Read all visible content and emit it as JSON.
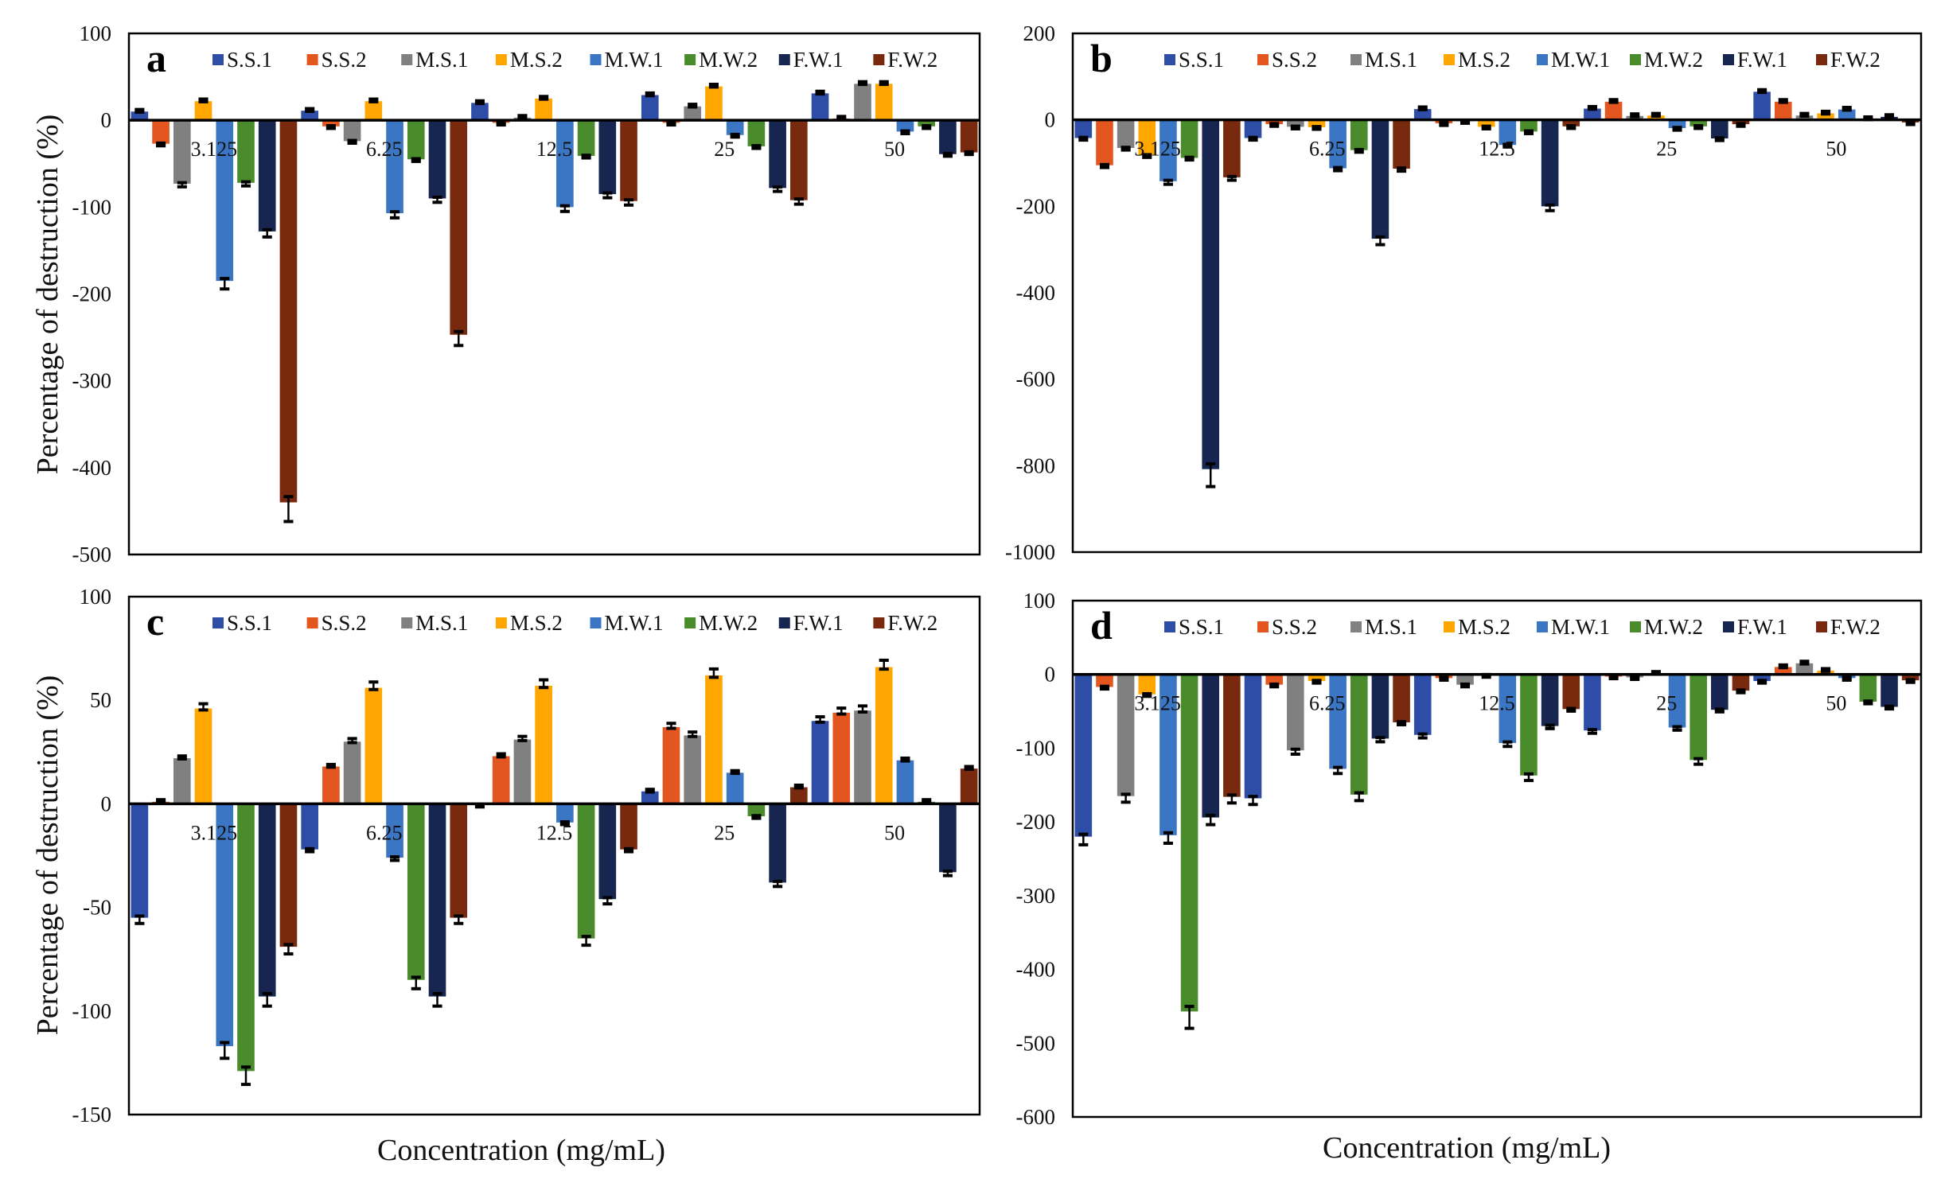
{
  "figure": {
    "ylabel": "Percentage of destruction (%)",
    "xlabel": "Concentration (mg/mL)"
  },
  "chart_data": [
    {
      "type": "bar",
      "panel": "a",
      "title": "a",
      "xlabel": "",
      "ylabel": "Percentage of destruction (%)",
      "categories": [
        "3.125",
        "6.25",
        "12.5",
        "25",
        "50"
      ],
      "ylim": [
        -500,
        100
      ],
      "yticks": [
        100,
        0,
        -100,
        -200,
        -300,
        -400,
        -500
      ],
      "legend_position": "top",
      "grid": false,
      "error_bars": true,
      "series": [
        {
          "name": "S.S.1",
          "color": "#2E4DA7",
          "values": [
            10,
            11,
            20,
            29,
            31
          ]
        },
        {
          "name": "S.S.2",
          "color": "#E4561F",
          "values": [
            -27,
            -7,
            -3,
            -3,
            2
          ]
        },
        {
          "name": "M.S.1",
          "color": "#808080",
          "values": [
            -73,
            -24,
            3,
            16,
            42
          ]
        },
        {
          "name": "M.S.2",
          "color": "#FFA600",
          "values": [
            22,
            22,
            25,
            39,
            42
          ]
        },
        {
          "name": "M.W.1",
          "color": "#3B76C5",
          "values": [
            -185,
            -107,
            -100,
            -17,
            -13
          ]
        },
        {
          "name": "M.W.2",
          "color": "#4A8B2C",
          "values": [
            -72,
            -45,
            -41,
            -30,
            -7
          ]
        },
        {
          "name": "F.W.1",
          "color": "#172650",
          "values": [
            -128,
            -90,
            -85,
            -78,
            -39
          ]
        },
        {
          "name": "F.W.2",
          "color": "#79290D",
          "values": [
            -440,
            -247,
            -93,
            -92,
            -37
          ]
        }
      ]
    },
    {
      "type": "bar",
      "panel": "b",
      "title": "b",
      "xlabel": "",
      "ylabel": "",
      "categories": [
        "3.125",
        "6.25",
        "12.5",
        "25",
        "50"
      ],
      "ylim": [
        -1000,
        200
      ],
      "yticks": [
        200,
        0,
        -200,
        -400,
        -600,
        -800,
        -1000
      ],
      "legend_position": "top",
      "grid": false,
      "error_bars": true,
      "series": [
        {
          "name": "S.S.1",
          "color": "#2E4DA7",
          "values": [
            -42,
            -42,
            25,
            26,
            65
          ]
        },
        {
          "name": "S.S.2",
          "color": "#E4561F",
          "values": [
            -105,
            -10,
            -8,
            42,
            42
          ]
        },
        {
          "name": "M.S.1",
          "color": "#808080",
          "values": [
            -65,
            -16,
            -3,
            9,
            10
          ]
        },
        {
          "name": "M.S.2",
          "color": "#FFA600",
          "values": [
            -82,
            -17,
            -16,
            10,
            15
          ]
        },
        {
          "name": "M.W.1",
          "color": "#3B76C5",
          "values": [
            -142,
            -112,
            -58,
            -19,
            24
          ]
        },
        {
          "name": "M.W.2",
          "color": "#4A8B2C",
          "values": [
            -88,
            -70,
            -27,
            -15,
            2
          ]
        },
        {
          "name": "F.W.1",
          "color": "#172650",
          "values": [
            -808,
            -275,
            -200,
            -43,
            7
          ]
        },
        {
          "name": "F.W.2",
          "color": "#79290D",
          "values": [
            -133,
            -113,
            -15,
            -10,
            -6
          ]
        }
      ]
    },
    {
      "type": "bar",
      "panel": "c",
      "title": "c",
      "xlabel": "Concentration (mg/mL)",
      "ylabel": "Percentage of destruction (%)",
      "categories": [
        "3.125",
        "6.25",
        "12.5",
        "25",
        "50"
      ],
      "ylim": [
        -150,
        100
      ],
      "yticks": [
        100,
        50,
        0,
        -50,
        -100,
        -150
      ],
      "legend_position": "top",
      "grid": false,
      "error_bars": true,
      "series": [
        {
          "name": "S.S.1",
          "color": "#2E4DA7",
          "values": [
            -55,
            -22,
            -0.5,
            6,
            40
          ]
        },
        {
          "name": "S.S.2",
          "color": "#E4561F",
          "values": [
            1,
            18,
            23,
            37,
            44
          ]
        },
        {
          "name": "M.S.1",
          "color": "#808080",
          "values": [
            22,
            30,
            31,
            33,
            45
          ]
        },
        {
          "name": "M.S.2",
          "color": "#FFA600",
          "values": [
            46,
            56,
            57,
            62,
            66
          ]
        },
        {
          "name": "M.W.1",
          "color": "#3B76C5",
          "values": [
            -117,
            -26,
            -9,
            15,
            21
          ]
        },
        {
          "name": "M.W.2",
          "color": "#4A8B2C",
          "values": [
            -129,
            -85,
            -65,
            -6,
            1
          ]
        },
        {
          "name": "F.W.1",
          "color": "#172650",
          "values": [
            -93,
            -93,
            -46,
            -38,
            -33
          ]
        },
        {
          "name": "F.W.2",
          "color": "#79290D",
          "values": [
            -69,
            -55,
            -22,
            8,
            17
          ]
        }
      ]
    },
    {
      "type": "bar",
      "panel": "d",
      "title": "d",
      "xlabel": "Concentration (mg/mL)",
      "ylabel": "",
      "categories": [
        "3.125",
        "6.25",
        "12.5",
        "25",
        "50"
      ],
      "ylim": [
        -600,
        100
      ],
      "yticks": [
        100,
        0,
        -100,
        -200,
        -300,
        -400,
        -500,
        -600
      ],
      "legend_position": "top",
      "grid": false,
      "error_bars": true,
      "series": [
        {
          "name": "S.S.1",
          "color": "#2E4DA7",
          "values": [
            -220,
            -168,
            -82,
            -76,
            -9
          ]
        },
        {
          "name": "S.S.2",
          "color": "#E4561F",
          "values": [
            -17,
            -14,
            -5,
            -3,
            10
          ]
        },
        {
          "name": "M.S.1",
          "color": "#808080",
          "values": [
            -165,
            -103,
            -14,
            -4,
            15
          ]
        },
        {
          "name": "M.S.2",
          "color": "#FFA600",
          "values": [
            -27,
            -9,
            -1,
            1,
            5
          ]
        },
        {
          "name": "M.W.1",
          "color": "#3B76C5",
          "values": [
            -218,
            -128,
            -93,
            -72,
            -5
          ]
        },
        {
          "name": "M.W.2",
          "color": "#4A8B2C",
          "values": [
            -457,
            -163,
            -137,
            -116,
            -37
          ]
        },
        {
          "name": "F.W.1",
          "color": "#172650",
          "values": [
            -194,
            -87,
            -70,
            -48,
            -44
          ]
        },
        {
          "name": "F.W.2",
          "color": "#79290D",
          "values": [
            -166,
            -65,
            -47,
            -22,
            -8
          ]
        }
      ]
    }
  ]
}
